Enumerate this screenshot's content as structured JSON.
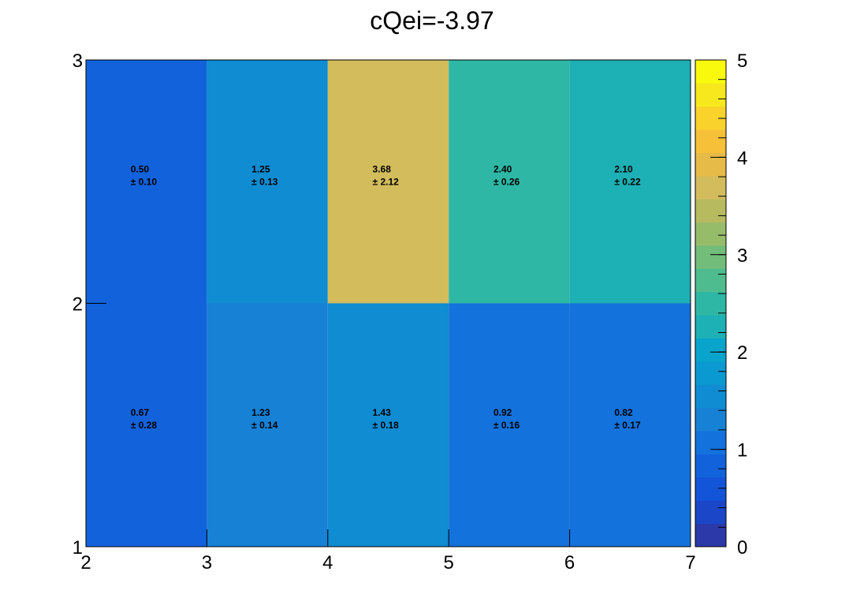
{
  "chart_data": {
    "type": "heatmap",
    "title": "cQei=-3.97",
    "x_edges": [
      2,
      3,
      4,
      5,
      6,
      7
    ],
    "y_edges": [
      1,
      2,
      3
    ],
    "xlim": [
      2,
      7
    ],
    "ylim": [
      1,
      3
    ],
    "x_ticks": [
      "2",
      "3",
      "4",
      "5",
      "6",
      "7"
    ],
    "y_ticks": [
      "1",
      "2",
      "3"
    ],
    "colorbar": {
      "range": [
        0,
        5
      ],
      "ticks": [
        "0",
        "1",
        "2",
        "3",
        "4",
        "5"
      ]
    },
    "cells": [
      {
        "x": [
          2,
          3
        ],
        "y": [
          2,
          3
        ],
        "value": "0.50",
        "error": "± 0.10",
        "color": "#1262dc"
      },
      {
        "x": [
          3,
          4
        ],
        "y": [
          2,
          3
        ],
        "value": "1.25",
        "error": "± 0.13",
        "color": "#0f8cd2"
      },
      {
        "x": [
          4,
          5
        ],
        "y": [
          2,
          3
        ],
        "value": "3.68",
        "error": "± 2.12",
        "color": "#d2bc5c"
      },
      {
        "x": [
          5,
          6
        ],
        "y": [
          2,
          3
        ],
        "value": "2.40",
        "error": "± 0.26",
        "color": "#2eb7a5"
      },
      {
        "x": [
          6,
          7
        ],
        "y": [
          2,
          3
        ],
        "value": "2.10",
        "error": "± 0.22",
        "color": "#1db0b4"
      },
      {
        "x": [
          2,
          3
        ],
        "y": [
          1,
          2
        ],
        "value": "0.67",
        "error": "± 0.28",
        "color": "#1262dc"
      },
      {
        "x": [
          3,
          4
        ],
        "y": [
          1,
          2
        ],
        "value": "1.23",
        "error": "± 0.14",
        "color": "#1681d5"
      },
      {
        "x": [
          4,
          5
        ],
        "y": [
          1,
          2
        ],
        "value": "1.43",
        "error": "± 0.18",
        "color": "#0f8cd2"
      },
      {
        "x": [
          5,
          6
        ],
        "y": [
          1,
          2
        ],
        "value": "0.92",
        "error": "± 0.16",
        "color": "#1372db"
      },
      {
        "x": [
          6,
          7
        ],
        "y": [
          1,
          2
        ],
        "value": "0.82",
        "error": "± 0.17",
        "color": "#1372db"
      }
    ],
    "palette": [
      "#2b3aa8",
      "#1b46c8",
      "#1255d8",
      "#1262dc",
      "#1372db",
      "#1681d5",
      "#0f8cd2",
      "#0b99d2",
      "#08a4cb",
      "#1db0b4",
      "#2eb7a5",
      "#4ebc8e",
      "#72bd7a",
      "#96bc6a",
      "#b7ba5e",
      "#d2bc5c",
      "#e6bb48",
      "#f6c038",
      "#fad22c",
      "#f6e81d",
      "#f9f90e"
    ]
  }
}
